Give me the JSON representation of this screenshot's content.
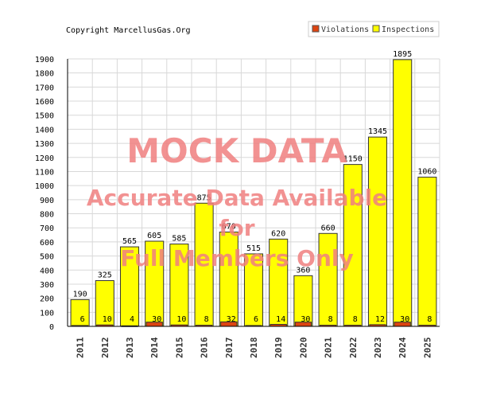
{
  "copyright": "Copyright MarcellusGas.Org",
  "watermark": {
    "line1": "MOCK DATA",
    "line2": "Accurate Data Available",
    "line3": "for",
    "line4": "Full Members Only"
  },
  "colors": {
    "violations": "#dd4411",
    "inspections": "#ffff00",
    "grid": "#d8d8d8",
    "watermark": "#f08080"
  },
  "chart_data": {
    "type": "bar",
    "categories": [
      "2011",
      "2012",
      "2013",
      "2014",
      "2015",
      "2016",
      "2017",
      "2018",
      "2019",
      "2020",
      "2021",
      "2022",
      "2023",
      "2024",
      "2025"
    ],
    "series": [
      {
        "name": "Violations",
        "values": [
          6,
          10,
          4,
          30,
          10,
          8,
          32,
          6,
          14,
          30,
          8,
          8,
          12,
          30,
          8
        ]
      },
      {
        "name": "Inspections",
        "values": [
          190,
          325,
          565,
          605,
          585,
          875,
          670,
          515,
          620,
          360,
          660,
          1150,
          1345,
          1895,
          1060
        ]
      }
    ],
    "yticks": [
      "0",
      "100",
      "200",
      "300",
      "400",
      "500",
      "600",
      "700",
      "800",
      "900",
      "1000",
      "1100",
      "1200",
      "1300",
      "1400",
      "1500",
      "1600",
      "1700",
      "1800",
      "1900"
    ],
    "ylim": [
      0,
      1900
    ],
    "grid": true,
    "legend": "top-right",
    "title": "",
    "xlabel": "",
    "ylabel": ""
  }
}
